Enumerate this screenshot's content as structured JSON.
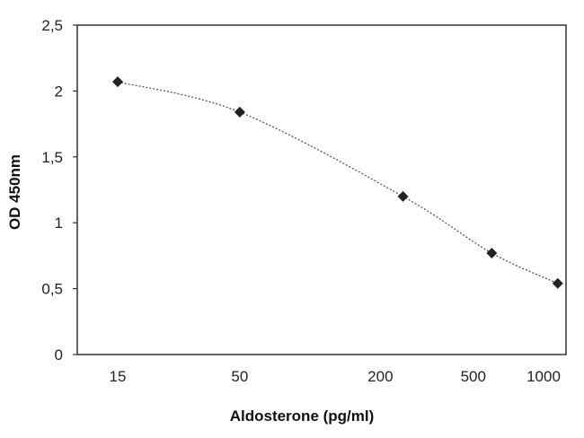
{
  "chart_data": {
    "type": "line",
    "title": "",
    "xlabel": "Aldosterone (pg/ml)",
    "ylabel": "OD 450nm",
    "x_scale": "log",
    "x_ticks": [
      15,
      50,
      200,
      500,
      1000
    ],
    "x_tick_labels": [
      "15",
      "50",
      "200",
      "500",
      "1000"
    ],
    "ylim": [
      0,
      2.5
    ],
    "y_ticks": [
      0,
      0.5,
      1,
      1.5,
      2,
      2.5
    ],
    "y_tick_labels": [
      "0",
      "0,5",
      "1",
      "1,5",
      "2",
      "2,5"
    ],
    "grid": false,
    "legend": "none",
    "series": [
      {
        "x": [
          15,
          50,
          250,
          600,
          1150
        ],
        "y": [
          2.07,
          1.84,
          1.2,
          0.77,
          0.54
        ],
        "color": "#222222"
      }
    ]
  }
}
